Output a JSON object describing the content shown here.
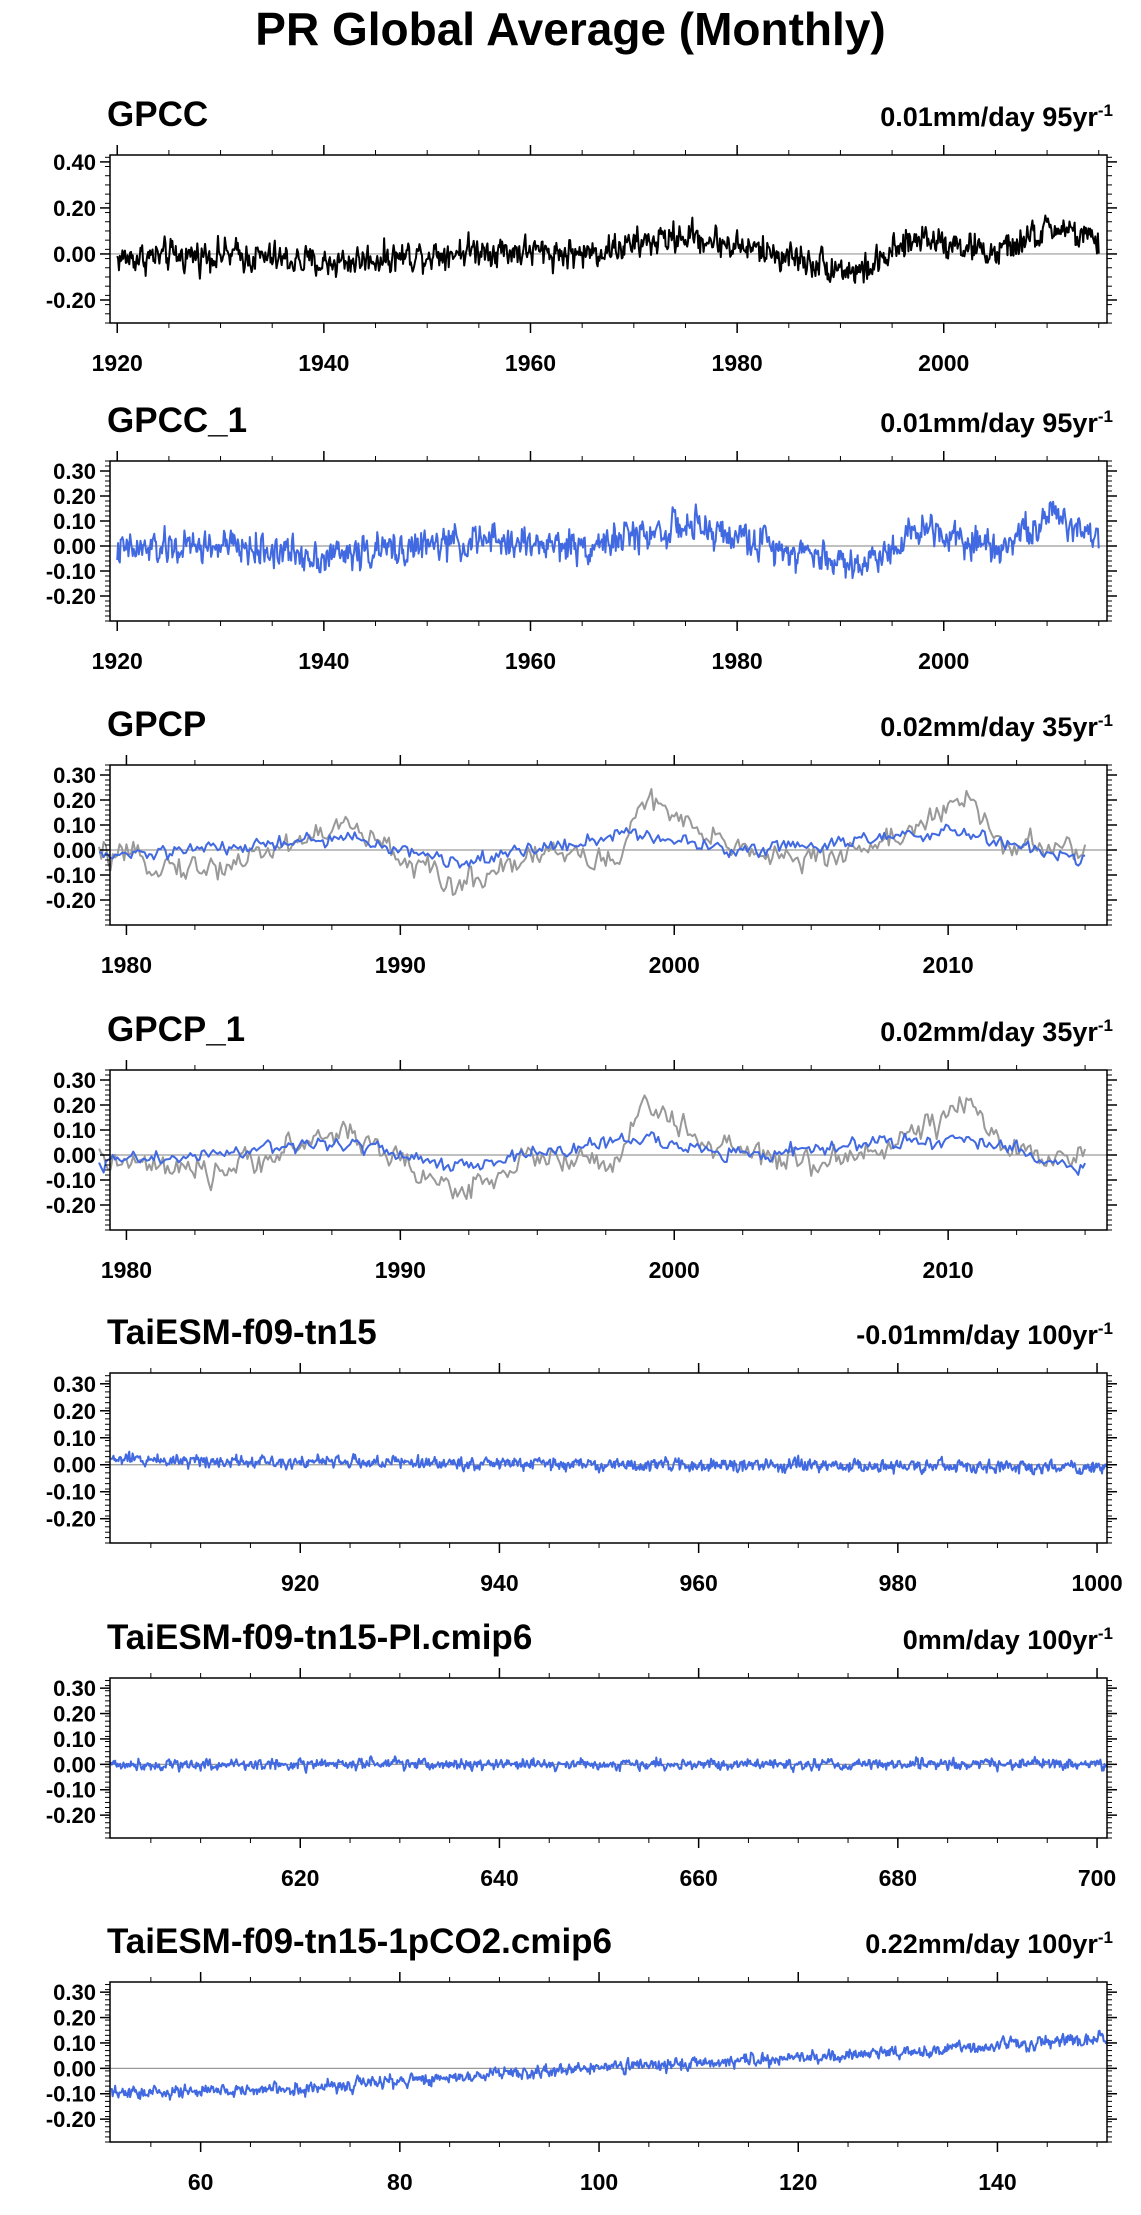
{
  "title": "PR Global Average (Monthly)",
  "colors": {
    "model": "#4169e1",
    "reference": "#999999",
    "axis": "#000000",
    "zero_line": "#9a9a9a"
  },
  "chart_data": [
    {
      "type": "line",
      "name": "GPCC",
      "trend_value": "0.01mm/day 95yr",
      "trend_exponent": "-1",
      "xlim": [
        1919.3,
        2015.8
      ],
      "ylim": [
        -0.3,
        0.43
      ],
      "yticks": [
        0.4,
        0.2,
        0.0,
        -0.2
      ],
      "ytick_labels": [
        "0.40",
        "0.20",
        "0.00",
        "-0.20"
      ],
      "xticks": [
        1920,
        1940,
        1960,
        1980,
        2000
      ],
      "xtick_labels": [
        "1920",
        "1940",
        "1960",
        "1980",
        "2000"
      ],
      "series": [
        {
          "color": "#000000",
          "x_start": 1920,
          "x_end": 2015,
          "profile": [
            [
              1920,
              -0.02
            ],
            [
              1930,
              0.0
            ],
            [
              1940,
              -0.04
            ],
            [
              1955,
              0.02
            ],
            [
              1965,
              0.0
            ],
            [
              1975,
              0.08
            ],
            [
              1985,
              -0.01
            ],
            [
              1992,
              -0.08
            ],
            [
              1998,
              0.08
            ],
            [
              2005,
              0.0
            ],
            [
              2011,
              0.12
            ],
            [
              2015,
              0.04
            ]
          ],
          "noise": 0.09
        }
      ]
    },
    {
      "type": "line",
      "name": "GPCC_1",
      "trend_value": "0.01mm/day 95yr",
      "trend_exponent": "-1",
      "xlim": [
        1919.3,
        2015.8
      ],
      "ylim": [
        -0.3,
        0.34
      ],
      "yticks": [
        0.3,
        0.2,
        0.1,
        0.0,
        -0.1,
        -0.2
      ],
      "ytick_labels": [
        "0.30",
        "0.20",
        "0.10",
        "0.00",
        "-0.10",
        "-0.20"
      ],
      "xticks": [
        1920,
        1940,
        1960,
        1980,
        2000
      ],
      "xtick_labels": [
        "1920",
        "1940",
        "1960",
        "1980",
        "2000"
      ],
      "series": [
        {
          "color": "#4169e1",
          "x_start": 1920,
          "x_end": 2015,
          "profile": [
            [
              1920,
              -0.02
            ],
            [
              1930,
              0.0
            ],
            [
              1940,
              -0.04
            ],
            [
              1955,
              0.02
            ],
            [
              1965,
              0.0
            ],
            [
              1975,
              0.08
            ],
            [
              1985,
              -0.01
            ],
            [
              1992,
              -0.08
            ],
            [
              1998,
              0.08
            ],
            [
              2005,
              0.0
            ],
            [
              2011,
              0.12
            ],
            [
              2015,
              0.04
            ]
          ],
          "noise": 0.09
        }
      ]
    },
    {
      "type": "line",
      "name": "GPCP",
      "trend_value": "0.02mm/day 35yr",
      "trend_exponent": "-1",
      "xlim": [
        1979.4,
        2015.8
      ],
      "ylim": [
        -0.3,
        0.34
      ],
      "yticks": [
        0.3,
        0.2,
        0.1,
        0.0,
        -0.1,
        -0.2
      ],
      "ytick_labels": [
        "0.30",
        "0.20",
        "0.10",
        "0.00",
        "-0.10",
        "-0.20"
      ],
      "xticks": [
        1980,
        1990,
        2000,
        2010
      ],
      "xtick_labels": [
        "1980",
        "1990",
        "2000",
        "2010"
      ],
      "series": [
        {
          "color": "#999999",
          "x_start": 1979,
          "x_end": 2015,
          "profile": [
            [
              1979,
              -0.02
            ],
            [
              1983,
              -0.08
            ],
            [
              1988,
              0.1
            ],
            [
              1992,
              -0.15
            ],
            [
              1995,
              0.0
            ],
            [
              1998,
              -0.05
            ],
            [
              1998.8,
              0.22
            ],
            [
              2001,
              0.05
            ],
            [
              2005,
              -0.05
            ],
            [
              2008,
              0.05
            ],
            [
              2010.8,
              0.2
            ],
            [
              2012,
              0.02
            ],
            [
              2015,
              0.0
            ]
          ],
          "noise": 0.07
        },
        {
          "color": "#4169e1",
          "x_start": 1979,
          "x_end": 2015,
          "profile": [
            [
              1979,
              -0.03
            ],
            [
              1985,
              0.02
            ],
            [
              1988,
              0.05
            ],
            [
              1992,
              -0.05
            ],
            [
              1998.5,
              0.07
            ],
            [
              2002,
              0.0
            ],
            [
              2010.5,
              0.07
            ],
            [
              2015,
              -0.05
            ]
          ],
          "noise": 0.04
        }
      ]
    },
    {
      "type": "line",
      "name": "GPCP_1",
      "trend_value": "0.02mm/day 35yr",
      "trend_exponent": "-1",
      "xlim": [
        1979.4,
        2015.8
      ],
      "ylim": [
        -0.3,
        0.34
      ],
      "yticks": [
        0.3,
        0.2,
        0.1,
        0.0,
        -0.1,
        -0.2
      ],
      "ytick_labels": [
        "0.30",
        "0.20",
        "0.10",
        "0.00",
        "-0.10",
        "-0.20"
      ],
      "xticks": [
        1980,
        1990,
        2000,
        2010
      ],
      "xtick_labels": [
        "1980",
        "1990",
        "2000",
        "2010"
      ],
      "series": [
        {
          "color": "#999999",
          "x_start": 1979,
          "x_end": 2015,
          "profile": [
            [
              1979,
              -0.02
            ],
            [
              1983,
              -0.08
            ],
            [
              1988,
              0.1
            ],
            [
              1992,
              -0.15
            ],
            [
              1995,
              0.0
            ],
            [
              1998,
              -0.05
            ],
            [
              1998.8,
              0.22
            ],
            [
              2001,
              0.05
            ],
            [
              2005,
              -0.05
            ],
            [
              2008,
              0.05
            ],
            [
              2010.8,
              0.2
            ],
            [
              2012,
              0.02
            ],
            [
              2015,
              0.0
            ]
          ],
          "noise": 0.07
        },
        {
          "color": "#4169e1",
          "x_start": 1979,
          "x_end": 2015,
          "profile": [
            [
              1979,
              -0.03
            ],
            [
              1985,
              0.02
            ],
            [
              1988,
              0.05
            ],
            [
              1992,
              -0.05
            ],
            [
              1998.5,
              0.07
            ],
            [
              2002,
              0.0
            ],
            [
              2010.5,
              0.07
            ],
            [
              2015,
              -0.05
            ]
          ],
          "noise": 0.04
        }
      ]
    },
    {
      "type": "line",
      "name": "TaiESM-f09-tn15",
      "trend_value": "-0.01mm/day 100yr",
      "trend_exponent": "-1",
      "xlim": [
        900.9,
        1001
      ],
      "ylim": [
        -0.29,
        0.34
      ],
      "yticks": [
        0.3,
        0.2,
        0.1,
        0.0,
        -0.1,
        -0.2
      ],
      "ytick_labels": [
        "0.30",
        "0.20",
        "0.10",
        "0.00",
        "-0.10",
        "-0.20"
      ],
      "xticks": [
        920,
        940,
        960,
        980,
        1000
      ],
      "xtick_labels": [
        "920",
        "940",
        "960",
        "980",
        "1000"
      ],
      "series": [
        {
          "color": "#4169e1",
          "x_start": 901,
          "x_end": 1000.9,
          "profile": [
            [
              901,
              0.02
            ],
            [
              950,
              0.0
            ],
            [
              1000.9,
              -0.01
            ]
          ],
          "noise": 0.032
        }
      ]
    },
    {
      "type": "line",
      "name": "TaiESM-f09-tn15-PI.cmip6",
      "trend_value": "0mm/day 100yr",
      "trend_exponent": "-1",
      "xlim": [
        600.9,
        701
      ],
      "ylim": [
        -0.29,
        0.34
      ],
      "yticks": [
        0.3,
        0.2,
        0.1,
        0.0,
        -0.1,
        -0.2
      ],
      "ytick_labels": [
        "0.30",
        "0.20",
        "0.10",
        "0.00",
        "-0.10",
        "-0.20"
      ],
      "xticks": [
        620,
        640,
        660,
        680,
        700
      ],
      "xtick_labels": [
        "620",
        "640",
        "660",
        "680",
        "700"
      ],
      "series": [
        {
          "color": "#4169e1",
          "x_start": 601,
          "x_end": 700.9,
          "profile": [
            [
              601,
              0.0
            ],
            [
              700.9,
              0.0
            ]
          ],
          "noise": 0.03
        }
      ]
    },
    {
      "type": "line",
      "name": "TaiESM-f09-tn15-1pCO2.cmip6",
      "trend_value": "0.22mm/day 100yr",
      "trend_exponent": "-1",
      "xlim": [
        50.9,
        151
      ],
      "ylim": [
        -0.29,
        0.34
      ],
      "yticks": [
        0.3,
        0.2,
        0.1,
        0.0,
        -0.1,
        -0.2
      ],
      "ytick_labels": [
        "0.30",
        "0.20",
        "0.10",
        "0.00",
        "-0.10",
        "-0.20"
      ],
      "xticks": [
        60,
        80,
        100,
        120,
        140
      ],
      "xtick_labels": [
        "60",
        "80",
        "100",
        "120",
        "140"
      ],
      "series": [
        {
          "color": "#4169e1",
          "x_start": 51,
          "x_end": 150.9,
          "profile": [
            [
              51,
              -0.1
            ],
            [
              70,
              -0.08
            ],
            [
              90,
              -0.02
            ],
            [
              110,
              0.02
            ],
            [
              130,
              0.06
            ],
            [
              150.9,
              0.12
            ]
          ],
          "noise": 0.035
        }
      ]
    }
  ]
}
